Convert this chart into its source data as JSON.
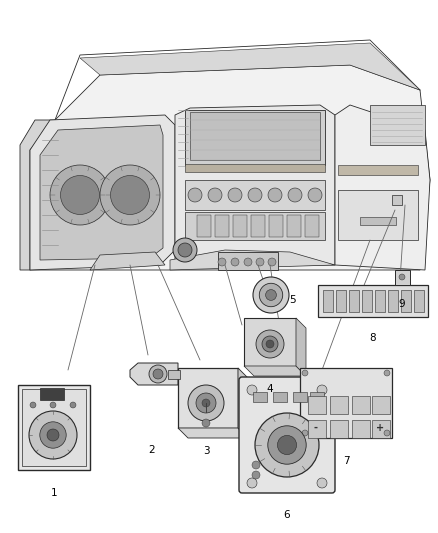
{
  "background_color": "#ffffff",
  "fig_width": 4.38,
  "fig_height": 5.33,
  "dpi": 100,
  "line_color": "#2a2a2a",
  "text_color": "#000000",
  "label_fontsize": 7.5,
  "dash_fill": "#f8f8f8",
  "dash_dark": "#d0d0d0",
  "comp_fill": "#f0f0f0",
  "comp_dark": "#b0b0b0",
  "comp_darker": "#707070"
}
